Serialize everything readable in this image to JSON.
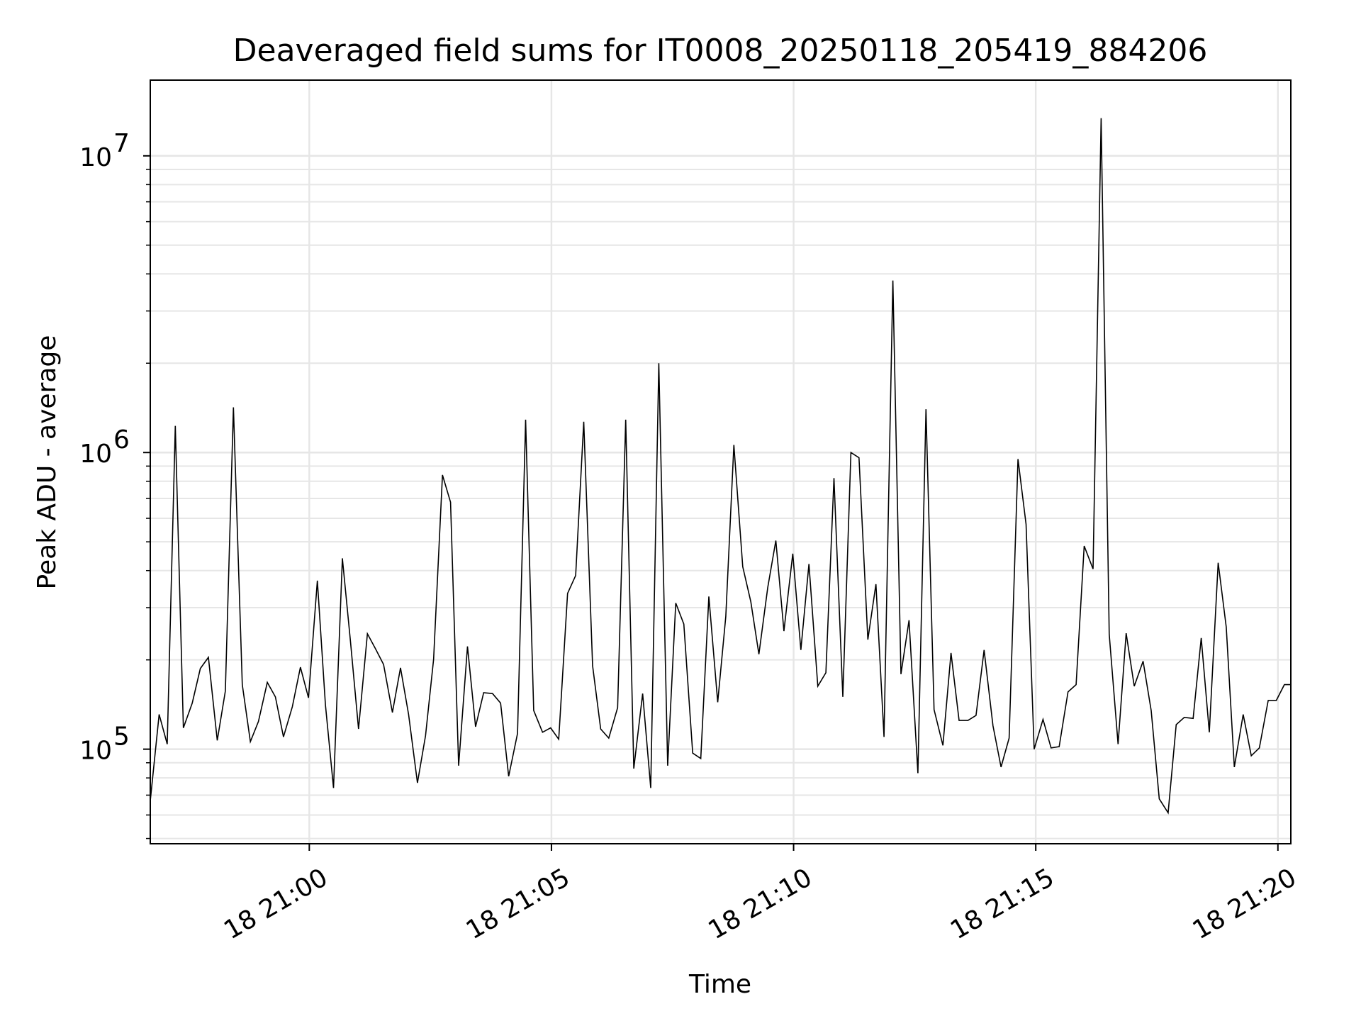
{
  "chart_data": {
    "type": "line",
    "title": "Deaveraged field sums for IT0008_20250118_205419_884206",
    "xlabel": "Time",
    "ylabel": "Peak ADU - average",
    "y_scale": "log",
    "ylim": [
      48000,
      18000000
    ],
    "xlim": [
      "18 20:56:43",
      "18 21:20:16"
    ],
    "grid": true,
    "line_color": "#000000",
    "x_ticks": [
      {
        "value": "18 21:00",
        "label": "18 21:00"
      },
      {
        "value": "18 21:05",
        "label": "18 21:05"
      },
      {
        "value": "18 21:10",
        "label": "18 21:10"
      },
      {
        "value": "18 21:15",
        "label": "18 21:15"
      },
      {
        "value": "18 21:20",
        "label": "18 21:20"
      }
    ],
    "y_ticks": [
      {
        "value": 100000,
        "label": "10",
        "exp": "5"
      },
      {
        "value": 1000000,
        "label": "10",
        "exp": "6"
      },
      {
        "value": 10000000,
        "label": "10",
        "exp": "7"
      }
    ],
    "series": [
      {
        "x": [
          "18 20:56:43",
          "18 20:56:54",
          "18 20:57:04",
          "18 20:57:14",
          "18 20:57:24",
          "18 20:57:35",
          "18 20:57:45",
          "18 20:57:55",
          "18 20:58:06",
          "18 20:58:16",
          "18 20:58:26",
          "18 20:58:37",
          "18 20:58:47",
          "18 20:58:57",
          "18 20:59:08",
          "18 20:59:18",
          "18 20:59:28",
          "18 20:59:39",
          "18 20:59:49",
          "18 20:59:59",
          "18 21:00:10",
          "18 21:00:20",
          "18 21:00:30",
          "18 21:00:41",
          "18 21:00:51",
          "18 21:01:01",
          "18 21:01:12",
          "18 21:01:22",
          "18 21:01:32",
          "18 21:01:43",
          "18 21:01:53",
          "18 21:02:03",
          "18 21:02:14",
          "18 21:02:24",
          "18 21:02:34",
          "18 21:02:45",
          "18 21:02:55",
          "18 21:03:05",
          "18 21:03:16",
          "18 21:03:26",
          "18 21:03:36",
          "18 21:03:47",
          "18 21:03:57",
          "18 21:04:07",
          "18 21:04:18",
          "18 21:04:28",
          "18 21:04:38",
          "18 21:04:49",
          "18 21:04:59",
          "18 21:05:09",
          "18 21:05:20",
          "18 21:05:30",
          "18 21:05:40",
          "18 21:05:51",
          "18 21:06:01",
          "18 21:06:11",
          "18 21:06:22",
          "18 21:06:32",
          "18 21:06:42",
          "18 21:06:53",
          "18 21:07:03",
          "18 21:07:13",
          "18 21:07:24",
          "18 21:07:34",
          "18 21:07:44",
          "18 21:07:55",
          "18 21:08:05",
          "18 21:08:15",
          "18 21:08:26",
          "18 21:08:36",
          "18 21:08:46",
          "18 21:08:57",
          "18 21:09:07",
          "18 21:09:17",
          "18 21:09:28",
          "18 21:09:38",
          "18 21:09:48",
          "18 21:09:59",
          "18 21:10:09",
          "18 21:10:19",
          "18 21:10:30",
          "18 21:10:40",
          "18 21:10:50",
          "18 21:11:01",
          "18 21:11:11",
          "18 21:11:21",
          "18 21:11:32",
          "18 21:11:42",
          "18 21:11:52",
          "18 21:12:03",
          "18 21:12:13",
          "18 21:12:23",
          "18 21:12:34",
          "18 21:12:44",
          "18 21:12:54",
          "18 21:13:05",
          "18 21:13:15",
          "18 21:13:25",
          "18 21:13:36",
          "18 21:13:46",
          "18 21:13:56",
          "18 21:14:07",
          "18 21:14:17",
          "18 21:14:27",
          "18 21:14:38",
          "18 21:14:48",
          "18 21:14:58",
          "18 21:15:09",
          "18 21:15:19",
          "18 21:15:29",
          "18 21:15:40",
          "18 21:15:50",
          "18 21:16:00",
          "18 21:16:11",
          "18 21:16:21",
          "18 21:16:31",
          "18 21:16:42",
          "18 21:16:52",
          "18 21:17:02",
          "18 21:17:13",
          "18 21:17:23",
          "18 21:17:33",
          "18 21:17:44",
          "18 21:17:54",
          "18 21:18:04",
          "18 21:18:15",
          "18 21:18:25",
          "18 21:18:35",
          "18 21:18:46",
          "18 21:18:56",
          "18 21:19:06",
          "18 21:19:17",
          "18 21:19:27",
          "18 21:19:37",
          "18 21:19:48",
          "18 21:19:58",
          "18 21:20:08",
          "18 21:20:16"
        ],
        "values": [
          67000,
          131000,
          104000,
          1230000,
          118000,
          143000,
          187000,
          204000,
          107000,
          157000,
          1420000,
          165000,
          106000,
          124000,
          168000,
          150000,
          110000,
          139000,
          189000,
          149000,
          370000,
          141000,
          74000,
          440000,
          231000,
          117000,
          245000,
          218000,
          193000,
          133000,
          188000,
          131000,
          77000,
          111000,
          201000,
          840000,
          680000,
          88000,
          222000,
          119000,
          155000,
          154000,
          143000,
          81000,
          113000,
          1290000,
          135000,
          114000,
          118000,
          108000,
          335000,
          385000,
          1270000,
          191000,
          117000,
          109000,
          138000,
          1290000,
          86000,
          154000,
          74000,
          2000000,
          88000,
          311000,
          264000,
          97000,
          93000,
          327000,
          144000,
          280000,
          1060000,
          412000,
          314000,
          209000,
          351000,
          505000,
          250000,
          456000,
          216000,
          421000,
          163000,
          181000,
          820000,
          150000,
          1000000,
          960000,
          234000,
          360000,
          110000,
          3800000,
          179000,
          272000,
          83000,
          1400000,
          136000,
          103000,
          211000,
          125000,
          125000,
          130000,
          216000,
          120000,
          87000,
          109000,
          950000,
          573000,
          100000,
          126000,
          101000,
          102000,
          156000,
          165000,
          484000,
          405000,
          13400000,
          244000,
          104000,
          246000,
          163000,
          198000,
          135000,
          68000,
          61000,
          121000,
          128000,
          127000,
          237000,
          114000,
          425000,
          258000,
          87000,
          131000,
          95000,
          101000,
          146000,
          146000,
          165000,
          165000
        ]
      }
    ]
  }
}
